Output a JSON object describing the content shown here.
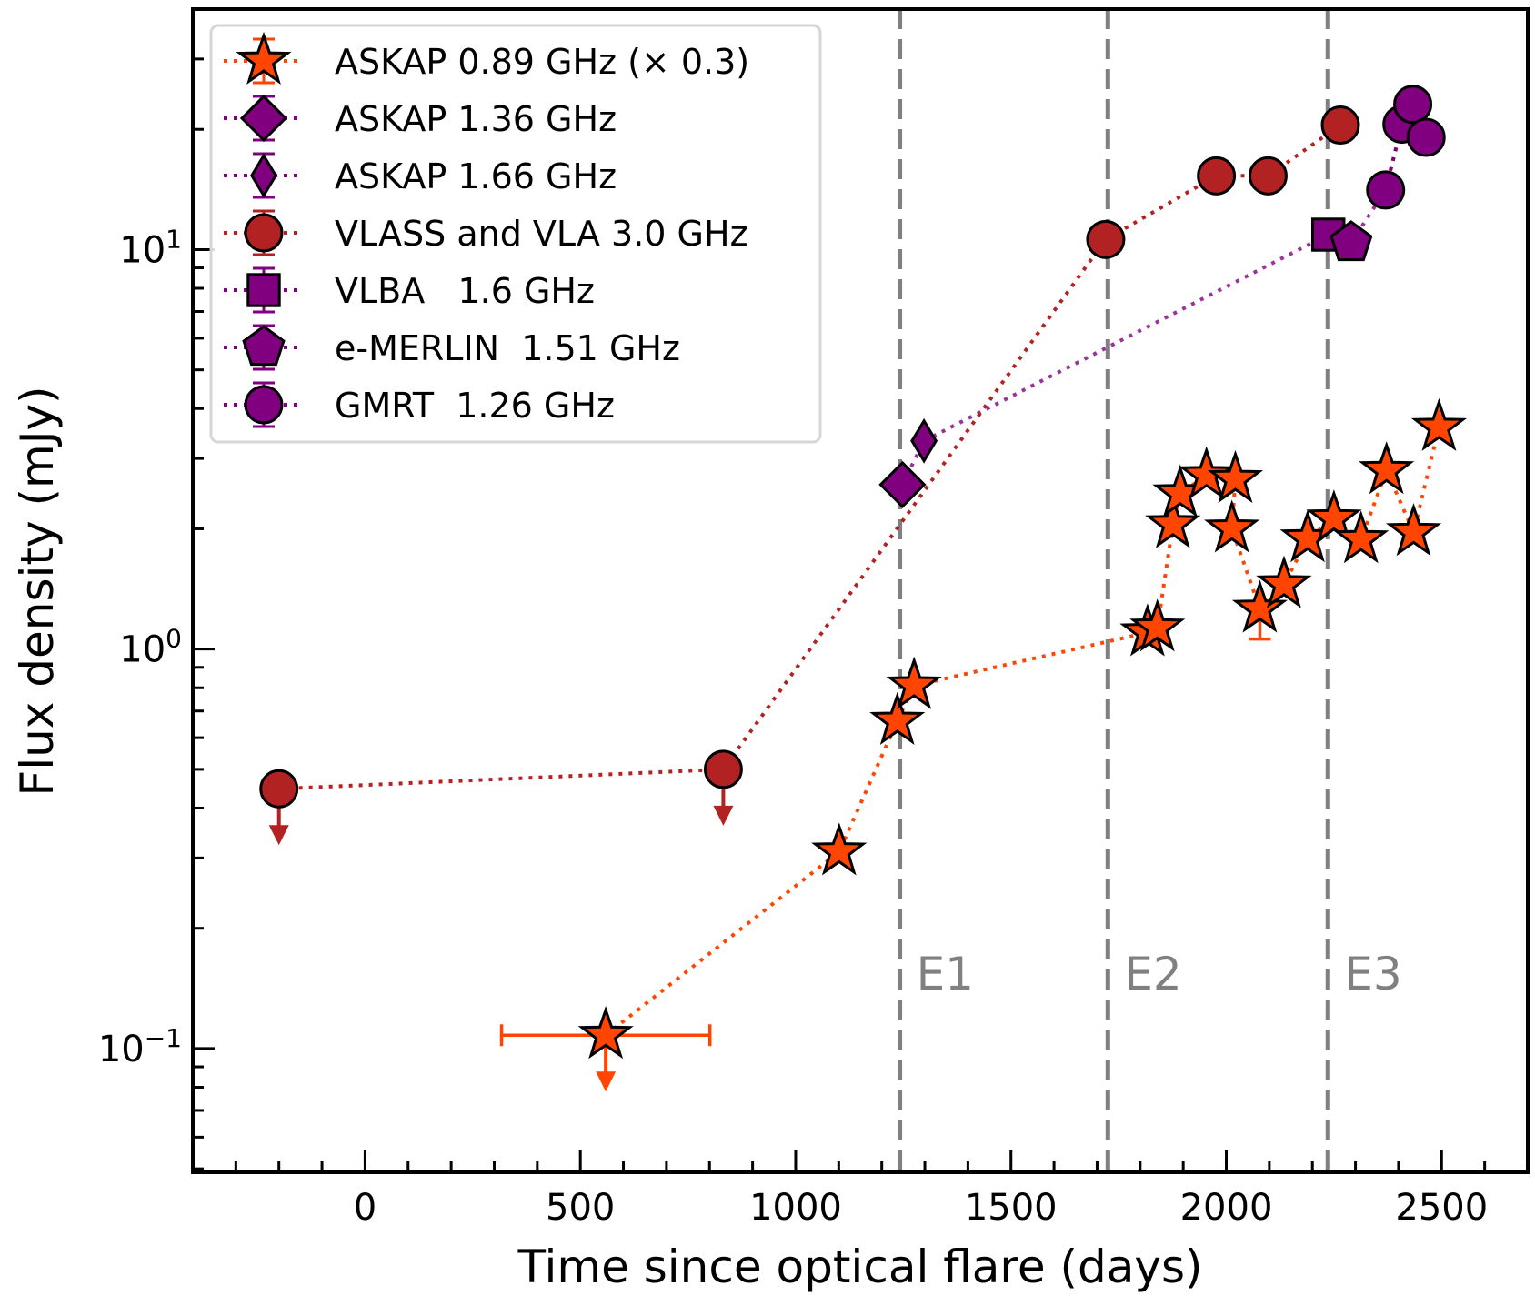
{
  "chart_data": {
    "type": "scatter",
    "title": "",
    "xlabel": "Time since optical flare (days)",
    "ylabel": "Flux density (mJy)",
    "xlim": [
      -400,
      2700
    ],
    "ylim": [
      0.049,
      40
    ],
    "yscale": "log",
    "grid": false,
    "legend_position": "top-left",
    "x_ticks": [
      0,
      500,
      1000,
      1500,
      2000,
      2500
    ],
    "x_tick_labels": [
      "0",
      "500",
      "1000",
      "1500",
      "2000",
      "2500"
    ],
    "y_ticks": [
      0.1,
      1,
      10
    ],
    "y_tick_labels": [
      {
        "base": "10",
        "exp": "−1"
      },
      {
        "base": "10",
        "exp": "0"
      },
      {
        "base": "10",
        "exp": "1"
      }
    ],
    "events": [
      {
        "label": "E1",
        "x": 1242
      },
      {
        "label": "E2",
        "x": 1725
      },
      {
        "label": "E3",
        "x": 2236
      }
    ],
    "event_line_color": "#808080",
    "series": [
      {
        "name": "ASKAP 0.89 GHz (× 0.3)",
        "marker": "star",
        "color": "#ff4500",
        "line_color": "#ff4500",
        "points": [
          {
            "x": 559,
            "y": 0.108,
            "upper_limit": true,
            "xerr": [
              242,
              242
            ]
          },
          {
            "x": 1101,
            "y": 0.311
          },
          {
            "x": 1236,
            "y": 0.66
          },
          {
            "x": 1275,
            "y": 0.81
          },
          {
            "x": 1817,
            "y": 1.1
          },
          {
            "x": 1840,
            "y": 1.13
          },
          {
            "x": 1876,
            "y": 2.05
          },
          {
            "x": 1893,
            "y": 2.45
          },
          {
            "x": 1954,
            "y": 2.72
          },
          {
            "x": 2021,
            "y": 2.66
          },
          {
            "x": 2013,
            "y": 2.0
          },
          {
            "x": 2078,
            "y": 1.26,
            "yerr": [
              0.2,
              0.1
            ]
          },
          {
            "x": 2134,
            "y": 1.45
          },
          {
            "x": 2189,
            "y": 1.89
          },
          {
            "x": 2250,
            "y": 2.12
          },
          {
            "x": 2313,
            "y": 1.88
          },
          {
            "x": 2372,
            "y": 2.8
          },
          {
            "x": 2435,
            "y": 1.96
          },
          {
            "x": 2494,
            "y": 3.59
          }
        ]
      },
      {
        "name": "ASKAP 1.36 GHz",
        "marker": "diamond",
        "color": "#800080",
        "line_color": "#800080",
        "points": [
          {
            "x": 1248,
            "y": 2.58
          }
        ]
      },
      {
        "name": "ASKAP 1.66 GHz",
        "marker": "thin_diamond",
        "color": "#800080",
        "line_color": "#800080",
        "points": [
          {
            "x": 1298,
            "y": 3.32
          }
        ]
      },
      {
        "name": "VLASS and VLA 3.0 GHz",
        "marker": "circle",
        "color": "#b22222",
        "line_color": "#b22222",
        "points": [
          {
            "x": -200,
            "y": 0.447,
            "upper_limit": true
          },
          {
            "x": 832,
            "y": 0.5,
            "upper_limit": true
          },
          {
            "x": 1720,
            "y": 10.6
          },
          {
            "x": 1977,
            "y": 15.3
          },
          {
            "x": 2097,
            "y": 15.3
          },
          {
            "x": 2265,
            "y": 20.5
          }
        ]
      },
      {
        "name": "VLBA   1.6 GHz",
        "marker": "square",
        "color": "#800080",
        "line_color": "#800080",
        "points": [
          {
            "x": 2237,
            "y": 10.9
          }
        ]
      },
      {
        "name": "e-MERLIN  1.51 GHz",
        "marker": "pentagon",
        "color": "#800080",
        "line_color": "#800080",
        "points": [
          {
            "x": 2290,
            "y": 10.4
          }
        ]
      },
      {
        "name": "GMRT  1.26 GHz",
        "marker": "circle",
        "color": "#800080",
        "line_color": "#800080",
        "points": [
          {
            "x": 2370,
            "y": 14.1
          },
          {
            "x": 2408,
            "y": 20.6
          },
          {
            "x": 2433,
            "y": 23.1
          },
          {
            "x": 2464,
            "y": 19.1
          }
        ]
      }
    ],
    "connector_lines": [
      {
        "name": "mid-frequency-trend",
        "color": "#993399",
        "from": [
          1298,
          3.32
        ],
        "to": [
          2237,
          10.9
        ]
      },
      {
        "name": "mid-frequency-trend-2",
        "color": "#993399",
        "from": [
          1248,
          2.58
        ],
        "to": [
          1298,
          3.32
        ]
      },
      {
        "name": "mid-frequency-trend-3",
        "color": "#993399",
        "from": [
          2290,
          10.4
        ],
        "to": [
          2370,
          14.1
        ]
      },
      {
        "name": "mid-frequency-trend-4",
        "color": "#993399",
        "from": [
          2370,
          14.1
        ],
        "to": [
          2408,
          20.6
        ]
      },
      {
        "name": "mid-frequency-trend-5",
        "color": "#993399",
        "from": [
          2237,
          10.9
        ],
        "to": [
          2290,
          10.4
        ]
      }
    ]
  }
}
